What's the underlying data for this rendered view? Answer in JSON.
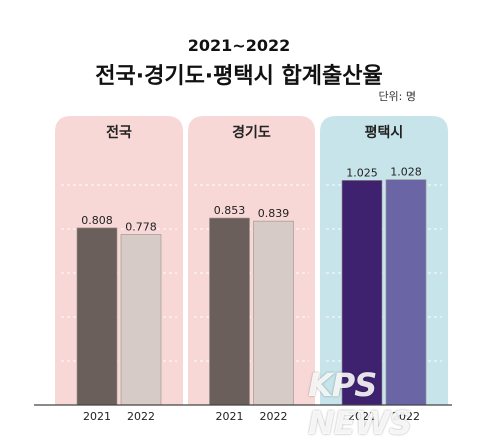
{
  "header": {
    "subtitle": "2021~2022",
    "title": "전국·경기도·평택시 합계출산율",
    "unit": "단위: 명"
  },
  "watermark": {
    "text": "KPS NEWS"
  },
  "colors": {
    "panel_pink": "#f8d8d6",
    "panel_blue": "#c6e4ea",
    "bar_dark_gray": "#6b5f5b",
    "bar_light_gray": "#d6cbc6",
    "bar_dark_purple": "#3e2270",
    "bar_light_purple": "#6a65a4"
  },
  "chart_data": {
    "type": "bar",
    "groups": [
      {
        "name": "전국",
        "panel_color": "pink",
        "categories": [
          "2021",
          "2022"
        ],
        "values": [
          0.808,
          0.778
        ],
        "labels": [
          "0.808",
          "0.778"
        ]
      },
      {
        "name": "경기도",
        "panel_color": "pink",
        "categories": [
          "2021",
          "2022"
        ],
        "values": [
          0.853,
          0.839
        ],
        "labels": [
          "0.853",
          "0.839"
        ]
      },
      {
        "name": "평택시",
        "panel_color": "blue",
        "categories": [
          "2021",
          "2022"
        ],
        "values": [
          1.025,
          1.028
        ],
        "labels": [
          "1.025",
          "1.028"
        ]
      }
    ],
    "ylim": [
      0,
      1.2
    ],
    "grid": true
  }
}
